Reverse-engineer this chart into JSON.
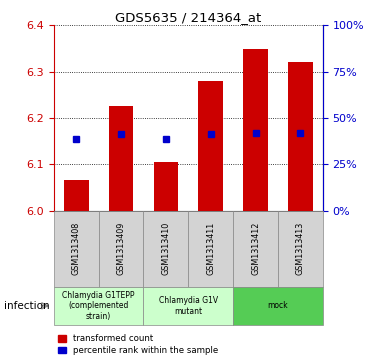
{
  "title": "GDS5635 / 214364_at",
  "samples": [
    "GSM1313408",
    "GSM1313409",
    "GSM1313410",
    "GSM1313411",
    "GSM1313412",
    "GSM1313413"
  ],
  "bar_bottoms": [
    6.0,
    6.0,
    6.0,
    6.0,
    6.0,
    6.0
  ],
  "bar_tops": [
    6.065,
    6.225,
    6.105,
    6.28,
    6.35,
    6.32
  ],
  "percentile_values": [
    6.155,
    6.165,
    6.155,
    6.165,
    6.168,
    6.168
  ],
  "ylim": [
    6.0,
    6.4
  ],
  "yticks_left": [
    6.0,
    6.1,
    6.2,
    6.3,
    6.4
  ],
  "yticks_right": [
    0,
    25,
    50,
    75,
    100
  ],
  "bar_color": "#cc0000",
  "dot_color": "#0000cc",
  "group_configs": [
    {
      "indices": [
        0,
        1
      ],
      "label": "Chlamydia G1TEPP\n(complemented\nstrain)",
      "color": "#ccffcc"
    },
    {
      "indices": [
        2,
        3
      ],
      "label": "Chlamydia G1V\nmutant",
      "color": "#ccffcc"
    },
    {
      "indices": [
        4,
        5
      ],
      "label": "mock",
      "color": "#55cc55"
    }
  ],
  "infection_label": "infection",
  "legend_red": "transformed count",
  "legend_blue": "percentile rank within the sample",
  "background_color": "#ffffff",
  "left_axis_color": "#cc0000",
  "right_axis_color": "#0000cc",
  "sample_box_color": "#d3d3d3",
  "sample_box_edge": "#888888"
}
